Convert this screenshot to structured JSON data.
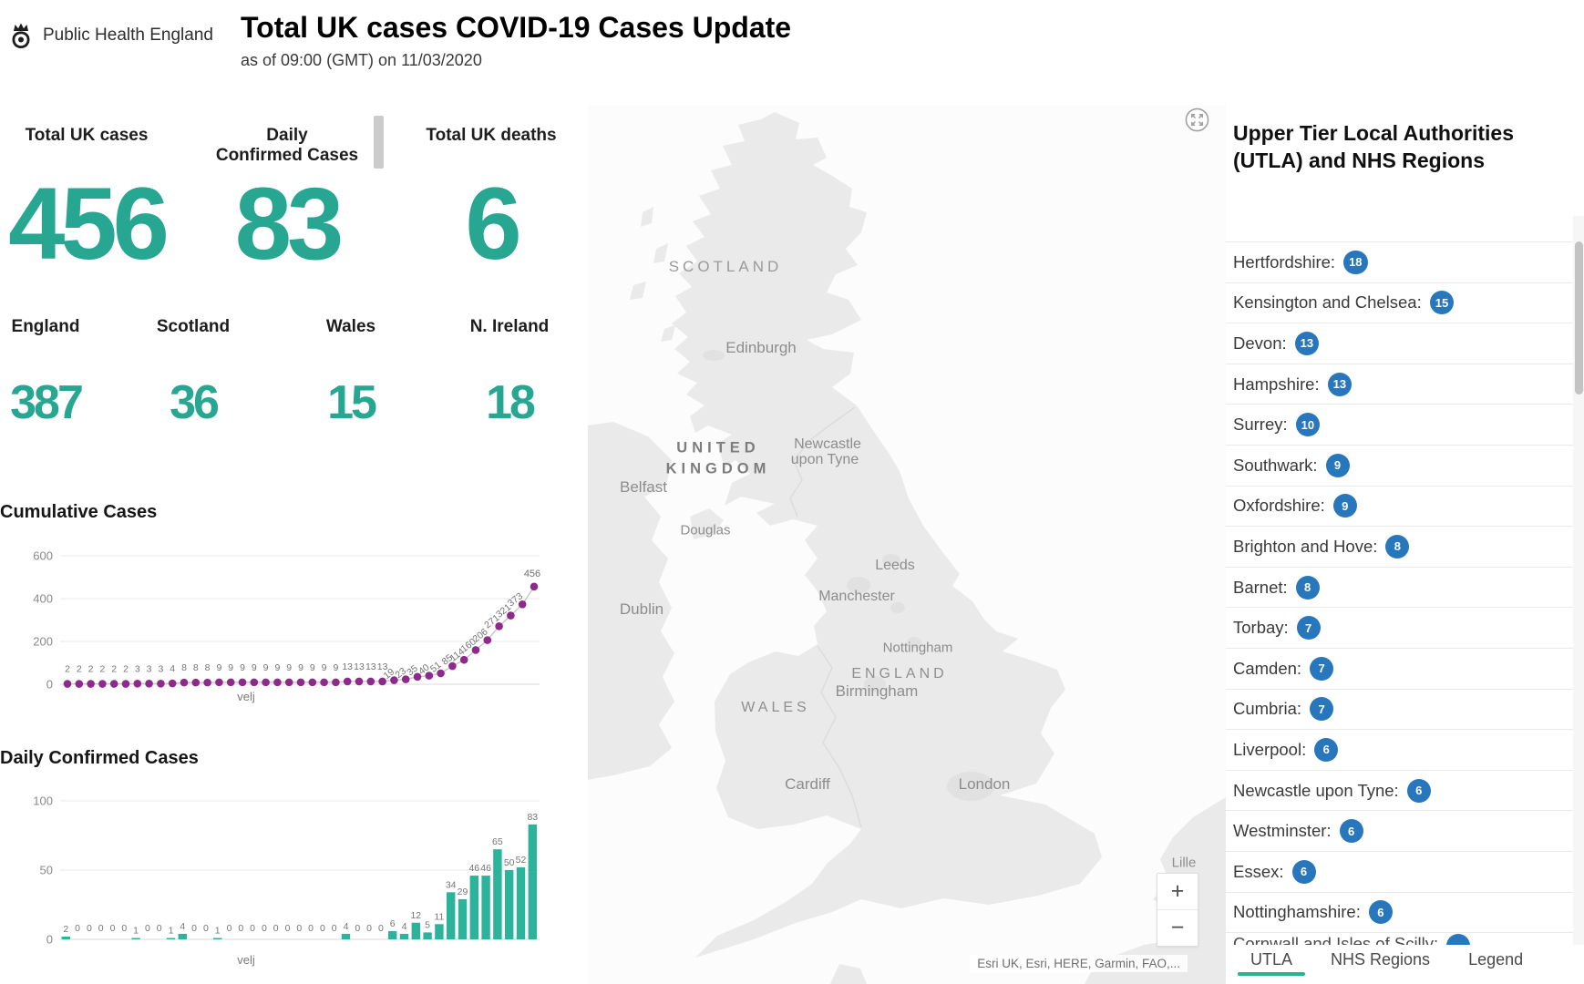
{
  "header": {
    "logo_text": "Public Health England",
    "title": "Total UK cases COVID-19 Cases Update",
    "subtitle": "as of 09:00 (GMT) on 11/03/2020"
  },
  "stats": {
    "total_uk_cases": {
      "label": "Total UK cases",
      "value": "456"
    },
    "daily_confirmed": {
      "label_line1": "Daily",
      "label_line2": "Confirmed Cases",
      "value": "83"
    },
    "total_uk_deaths": {
      "label": "Total UK deaths",
      "value": "6"
    },
    "nations": [
      {
        "label": "England",
        "value": "387"
      },
      {
        "label": "Scotland",
        "value": "36"
      },
      {
        "label": "Wales",
        "value": "15"
      },
      {
        "label": "N. Ireland",
        "value": "18"
      }
    ],
    "accent_color": "#27A791"
  },
  "chart_data": [
    {
      "type": "line",
      "title": "Cumulative Cases",
      "xlabel": "velj",
      "ylabel": "",
      "ylim": [
        0,
        600
      ],
      "yticks": [
        0,
        200,
        400,
        600
      ],
      "values": [
        2,
        2,
        2,
        2,
        2,
        2,
        3,
        3,
        3,
        4,
        8,
        8,
        8,
        9,
        9,
        9,
        9,
        9,
        9,
        9,
        9,
        9,
        9,
        9,
        13,
        13,
        13,
        13,
        19,
        23,
        35,
        40,
        51,
        85,
        114,
        160,
        206,
        271,
        321,
        373,
        456
      ],
      "point_color": "#8E2A8C",
      "line_color": "#C6C6C6",
      "label_color": "#767676",
      "grid": true,
      "legend": false
    },
    {
      "type": "bar",
      "title": "Daily Confirmed Cases",
      "xlabel": "velj",
      "ylabel": "",
      "ylim": [
        0,
        100
      ],
      "yticks": [
        0,
        50,
        100
      ],
      "values": [
        2,
        0,
        0,
        0,
        0,
        0,
        1,
        0,
        0,
        1,
        4,
        0,
        0,
        1,
        0,
        0,
        0,
        0,
        0,
        0,
        0,
        0,
        0,
        0,
        4,
        0,
        0,
        0,
        6,
        4,
        12,
        5,
        11,
        34,
        29,
        46,
        46,
        65,
        50,
        52,
        83
      ],
      "bar_color": "#2CB39B",
      "label_color": "#767676",
      "grid": true,
      "legend": false
    }
  ],
  "map": {
    "labels": [
      {
        "text": "SCOTLAND",
        "type": "region"
      },
      {
        "text": "Edinburgh",
        "type": "city"
      },
      {
        "text": "UNITED",
        "type": "country"
      },
      {
        "text": "KINGDOM",
        "type": "country"
      },
      {
        "text": "Newcastle",
        "type": "city"
      },
      {
        "text": "upon Tyne",
        "type": "city"
      },
      {
        "text": "Belfast",
        "type": "city"
      },
      {
        "text": "Douglas",
        "type": "city"
      },
      {
        "text": "Dublin",
        "type": "city"
      },
      {
        "text": "Leeds",
        "type": "city"
      },
      {
        "text": "Manchester",
        "type": "city"
      },
      {
        "text": "Nottingham",
        "type": "city"
      },
      {
        "text": "ENGLAND",
        "type": "region"
      },
      {
        "text": "Birmingham",
        "type": "city"
      },
      {
        "text": "WALES",
        "type": "region"
      },
      {
        "text": "Cardiff",
        "type": "city"
      },
      {
        "text": "London",
        "type": "city"
      },
      {
        "text": "Lille",
        "type": "city"
      }
    ],
    "attribution": "Esri UK, Esri, HERE, Garmin, FAO,...",
    "zoom_in_label": "+",
    "zoom_out_label": "−"
  },
  "panel": {
    "title_line1": "Upper Tier Local Authorities",
    "title_line2": "(UTLA) and NHS Regions",
    "items": [
      {
        "label": "Hertfordshire:",
        "count": "18"
      },
      {
        "label": "Kensington and Chelsea:",
        "count": "15"
      },
      {
        "label": "Devon:",
        "count": "13"
      },
      {
        "label": "Hampshire:",
        "count": "13"
      },
      {
        "label": "Surrey:",
        "count": "10"
      },
      {
        "label": "Southwark:",
        "count": "9"
      },
      {
        "label": "Oxfordshire:",
        "count": "9"
      },
      {
        "label": "Brighton and Hove:",
        "count": "8"
      },
      {
        "label": "Barnet:",
        "count": "8"
      },
      {
        "label": "Torbay:",
        "count": "7"
      },
      {
        "label": "Camden:",
        "count": "7"
      },
      {
        "label": "Cumbria:",
        "count": "7"
      },
      {
        "label": "Liverpool:",
        "count": "6"
      },
      {
        "label": "Newcastle upon Tyne:",
        "count": "6"
      },
      {
        "label": "Westminster:",
        "count": "6"
      },
      {
        "label": "Essex:",
        "count": "6"
      },
      {
        "label": "Nottinghamshire:",
        "count": "6"
      }
    ],
    "partial_item": {
      "label": "Cornwall and Isles of Scilly:"
    },
    "badge_color": "#2877BD",
    "tabs": [
      {
        "label": "UTLA",
        "active": true
      },
      {
        "label": "NHS Regions",
        "active": false
      },
      {
        "label": "Legend",
        "active": false
      }
    ]
  }
}
